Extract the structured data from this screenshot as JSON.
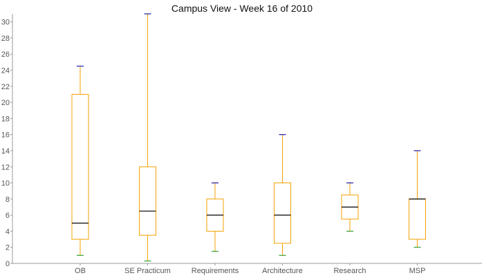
{
  "chart_data": {
    "type": "box",
    "title": "Campus View - Week 16 of 2010",
    "xlabel": "",
    "ylabel": "",
    "ylim": [
      0,
      31
    ],
    "yticks": [
      0,
      2,
      4,
      6,
      8,
      10,
      12,
      14,
      16,
      18,
      20,
      22,
      24,
      26,
      28,
      30
    ],
    "grid": false,
    "categories": [
      "OB",
      "SE Practicum",
      "Requirements",
      "Architecture",
      "Research",
      "MSP"
    ],
    "boxes": [
      {
        "category": "OB",
        "min": 1,
        "q1": 3,
        "median": 5,
        "q3": 21,
        "max": 24.5
      },
      {
        "category": "SE Practicum",
        "min": 0.3,
        "q1": 3.5,
        "median": 6.5,
        "q3": 12,
        "max": 31
      },
      {
        "category": "Requirements",
        "min": 1.5,
        "q1": 4,
        "median": 6,
        "q3": 8,
        "max": 10
      },
      {
        "category": "Architecture",
        "min": 1,
        "q1": 2.5,
        "median": 6,
        "q3": 10,
        "max": 16
      },
      {
        "category": "Research",
        "min": 4,
        "q1": 5.5,
        "median": 7,
        "q3": 8.5,
        "max": 10
      },
      {
        "category": "MSP",
        "min": 2,
        "q1": 3,
        "median": 8,
        "q3": 8,
        "max": 14
      }
    ],
    "colors": {
      "box": "#f5a000",
      "median": "#000000",
      "max_cap": "#1a1aa8",
      "min_cap": "#33a02c",
      "axis": "#999999",
      "tick_label": "#555555"
    }
  }
}
